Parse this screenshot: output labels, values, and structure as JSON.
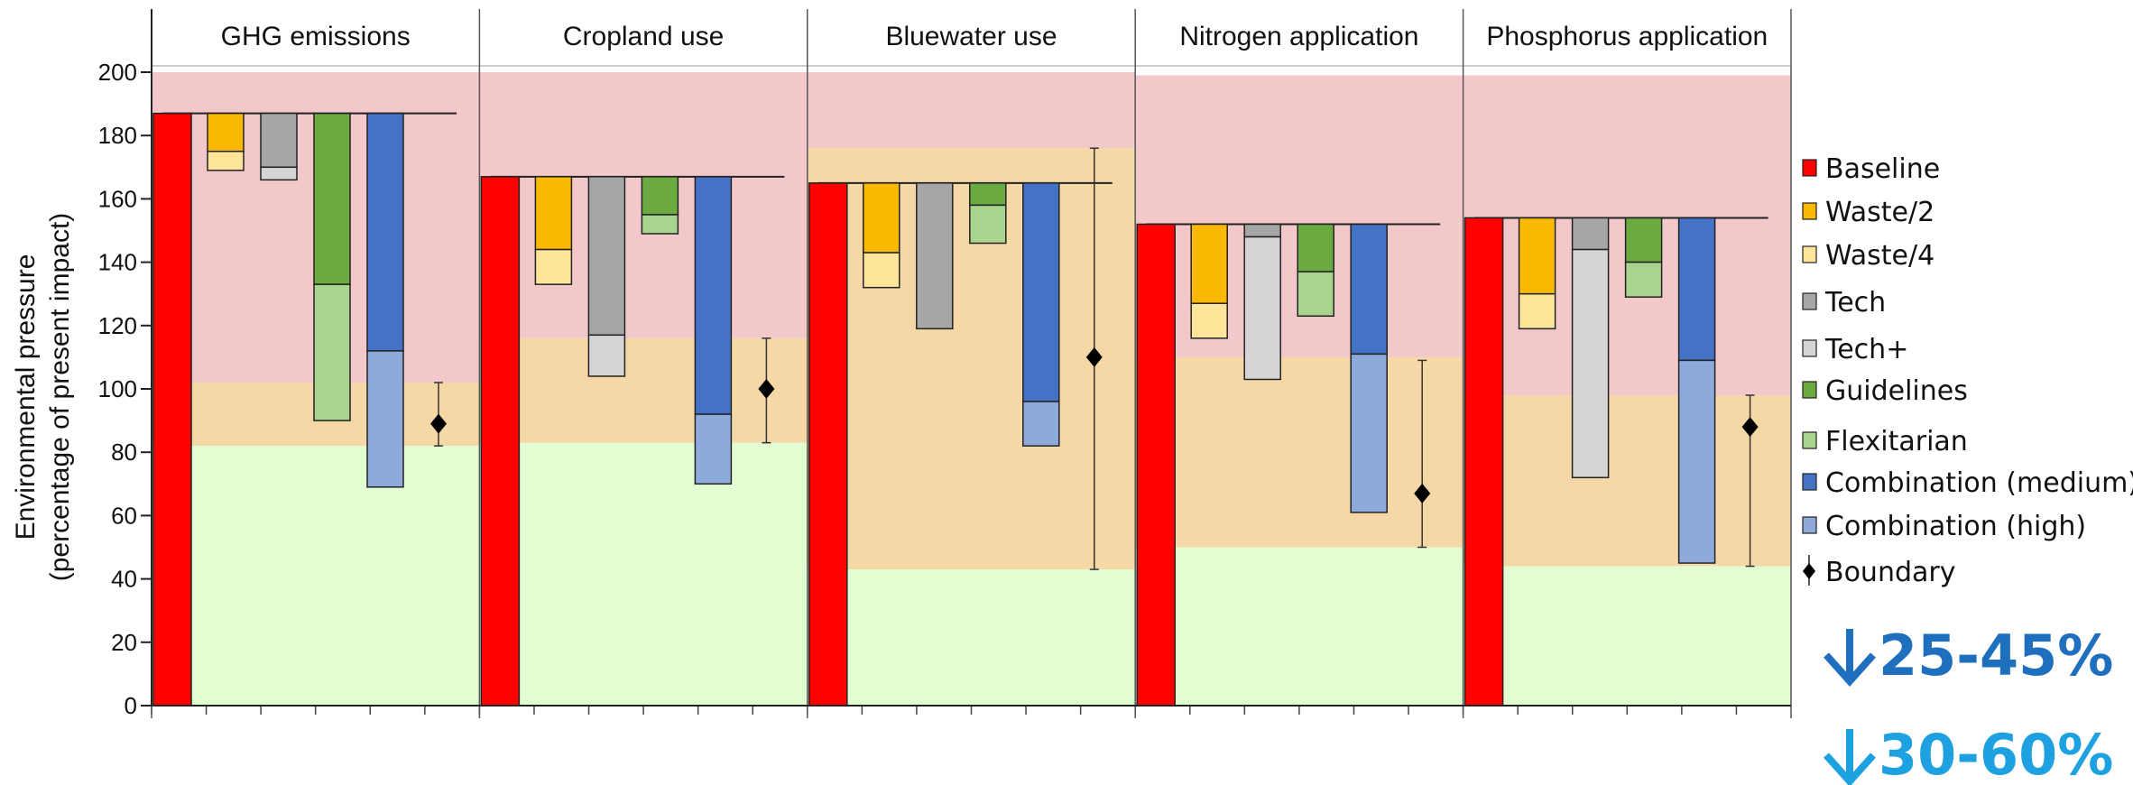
{
  "chart_data": {
    "type": "bar",
    "ylabel": "Environmental pressure",
    "ylabel_sub": "(percentage of present impact)",
    "ylim": [
      0,
      200
    ],
    "yticks": [
      0,
      20,
      40,
      60,
      80,
      100,
      120,
      140,
      160,
      180,
      200
    ],
    "grid": false,
    "legend_position": "right",
    "series": [
      {
        "name": "Baseline",
        "color": "#ff0000"
      },
      {
        "name": "Waste/2",
        "color": "#fbb800"
      },
      {
        "name": "Waste/4",
        "color": "#ffe59a"
      },
      {
        "name": "Tech",
        "color": "#a6a6a6"
      },
      {
        "name": "Tech+",
        "color": "#d5d5d5"
      },
      {
        "name": "Guidelines",
        "color": "#6aaa40"
      },
      {
        "name": "Flexitarian",
        "color": "#a9d48e"
      },
      {
        "name": "Combination (medium)",
        "color": "#4472c4"
      },
      {
        "name": "Combination (high)",
        "color": "#8eaadb"
      },
      {
        "name": "Boundary",
        "color": "#000000"
      }
    ],
    "zone_colors": {
      "safe": "#e2fdd2",
      "uncertain": "#f6d7a6",
      "high_risk": "#f2c8ca"
    },
    "panels": [
      {
        "title": "GHG emissions",
        "baseline": 187,
        "zones": {
          "safe_top": 82,
          "uncertain_top": 102,
          "risk_top": 200
        },
        "waste": [
          175,
          169
        ],
        "tech": [
          170,
          166
        ],
        "guidelines": [
          133,
          90
        ],
        "combination": [
          112,
          69
        ],
        "boundary": {
          "value": 89,
          "low": 82,
          "high": 102
        }
      },
      {
        "title": "Cropland use",
        "baseline": 167,
        "zones": {
          "safe_top": 83,
          "uncertain_top": 116,
          "risk_top": 200
        },
        "waste": [
          144,
          133
        ],
        "tech": [
          117,
          104
        ],
        "guidelines": [
          155,
          149
        ],
        "combination": [
          92,
          70
        ],
        "boundary": {
          "value": 100,
          "low": 83,
          "high": 116
        }
      },
      {
        "title": "Bluewater use",
        "baseline": 165,
        "zones": {
          "safe_top": 43,
          "uncertain_top": 176,
          "risk_top": 200
        },
        "waste": [
          143,
          132
        ],
        "tech": [
          119,
          119
        ],
        "guidelines": [
          158,
          146
        ],
        "combination": [
          96,
          82
        ],
        "boundary": {
          "value": 110,
          "low": 43,
          "high": 176
        }
      },
      {
        "title": "Nitrogen application",
        "baseline": 152,
        "zones": {
          "safe_top": 50,
          "uncertain_top": 110,
          "risk_top": 199
        },
        "waste": [
          127,
          116
        ],
        "tech": [
          148,
          103
        ],
        "guidelines": [
          137,
          123
        ],
        "combination": [
          111,
          61
        ],
        "boundary": {
          "value": 67,
          "low": 50,
          "high": 109
        }
      },
      {
        "title": "Phosphorus application",
        "baseline": 154,
        "zones": {
          "safe_top": 44,
          "uncertain_top": 98,
          "risk_top": 199
        },
        "waste": [
          130,
          119
        ],
        "tech": [
          144,
          72
        ],
        "guidelines": [
          140,
          129
        ],
        "combination": [
          109,
          45
        ],
        "boundary": {
          "value": 88,
          "low": 44,
          "high": 98
        }
      }
    ]
  },
  "callouts": [
    {
      "text": "25-45%",
      "color": "#1f6fbf"
    },
    {
      "text": "30-60%",
      "color": "#1ea1e0"
    }
  ]
}
